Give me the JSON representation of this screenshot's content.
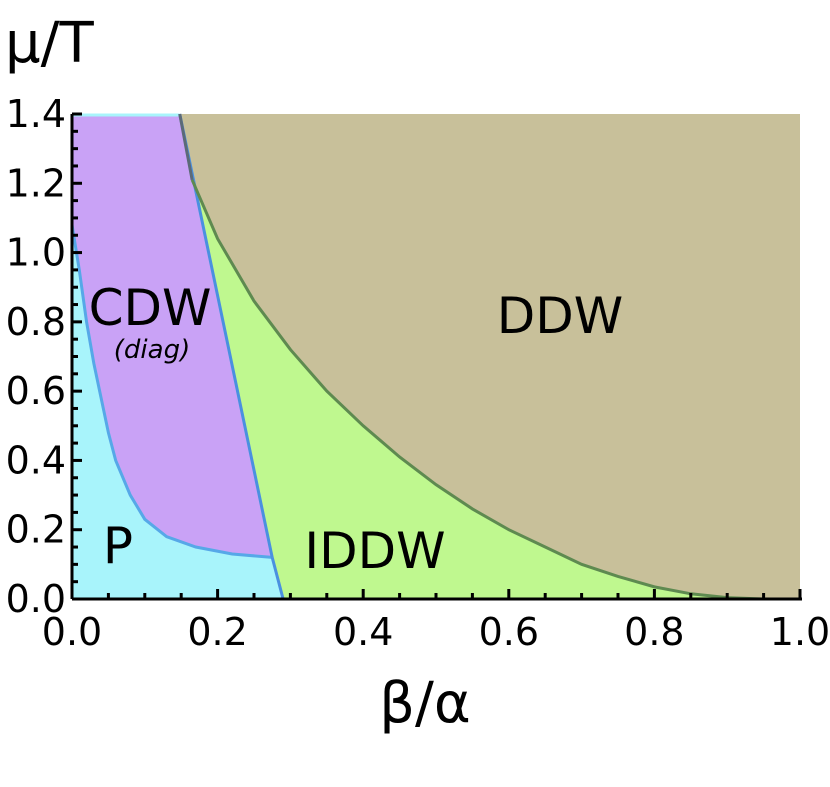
{
  "chart_data": {
    "type": "area",
    "title": "",
    "xlabel": "β/α",
    "ylabel": "μ/T",
    "xlim": [
      0.0,
      1.0
    ],
    "ylim": [
      0.0,
      1.4
    ],
    "x_ticks": [
      "0.0",
      "0.2",
      "0.4",
      "0.6",
      "0.8",
      "1.0"
    ],
    "y_ticks": [
      "0.0",
      "0.2",
      "0.4",
      "0.6",
      "0.8",
      "1.0",
      "1.2",
      "1.4"
    ],
    "grid": false,
    "regions": [
      {
        "label": "P",
        "color": "#a8f4fb"
      },
      {
        "label": "CDW",
        "sublabel": "(diag)",
        "color": "#c9a2f6"
      },
      {
        "label": "IDDW",
        "color": "#bff88f"
      },
      {
        "label": "DDW",
        "color": "#c8c09a"
      }
    ],
    "boundaries": {
      "p_cdw": {
        "color": "#56a8e8",
        "points": [
          [
            0.0,
            1.08
          ],
          [
            0.01,
            0.95
          ],
          [
            0.02,
            0.8
          ],
          [
            0.03,
            0.68
          ],
          [
            0.04,
            0.58
          ],
          [
            0.05,
            0.48
          ],
          [
            0.06,
            0.4
          ],
          [
            0.08,
            0.3
          ],
          [
            0.1,
            0.23
          ],
          [
            0.13,
            0.18
          ],
          [
            0.17,
            0.15
          ],
          [
            0.22,
            0.13
          ],
          [
            0.275,
            0.12
          ]
        ]
      },
      "cdw_iddw": {
        "color": "#4a90e0",
        "points": [
          [
            0.148,
            1.4
          ],
          [
            0.275,
            0.12
          ]
        ]
      },
      "p_iddw": {
        "color": "#4a90e0",
        "points": [
          [
            0.275,
            0.12
          ],
          [
            0.29,
            0.0
          ]
        ]
      },
      "cdw_ddw": {
        "color": "#5c6a78",
        "points": [
          [
            0.148,
            1.4
          ],
          [
            0.165,
            1.21
          ]
        ]
      },
      "iddw_ddw": {
        "color": "#5e8a50",
        "points": [
          [
            0.165,
            1.21
          ],
          [
            0.2,
            1.04
          ],
          [
            0.25,
            0.86
          ],
          [
            0.3,
            0.72
          ],
          [
            0.35,
            0.6
          ],
          [
            0.4,
            0.5
          ],
          [
            0.45,
            0.41
          ],
          [
            0.5,
            0.33
          ],
          [
            0.55,
            0.26
          ],
          [
            0.6,
            0.2
          ],
          [
            0.65,
            0.15
          ],
          [
            0.7,
            0.1
          ],
          [
            0.75,
            0.065
          ],
          [
            0.8,
            0.035
          ],
          [
            0.85,
            0.015
          ],
          [
            0.9,
            0.004
          ],
          [
            0.95,
            0.0
          ]
        ]
      }
    }
  }
}
